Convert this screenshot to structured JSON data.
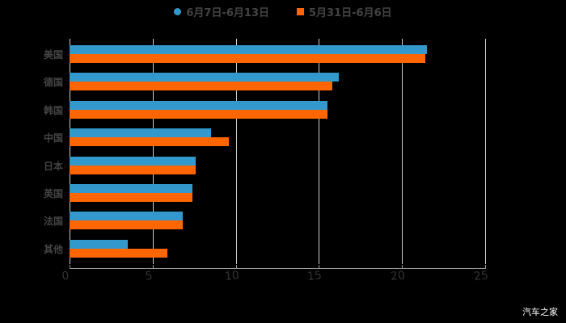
{
  "chart_data": {
    "type": "bar",
    "orientation": "horizontal",
    "title": "",
    "xlabel": "",
    "ylabel": "",
    "xlim": [
      0,
      25
    ],
    "x_ticks": [
      "0",
      "5",
      "10",
      "15",
      "20",
      "25"
    ],
    "grid": true,
    "legend_position": "top",
    "categories": [
      "美国",
      "德国",
      "韩国",
      "中国",
      "日本",
      "英国",
      "法国",
      "其他"
    ],
    "series": [
      {
        "name": "6月7日-6月13日",
        "color": "#3399cc",
        "values": [
          21.5,
          16.2,
          15.5,
          8.5,
          7.6,
          7.4,
          6.8,
          3.5
        ]
      },
      {
        "name": "5月31日-6月6日",
        "color": "#ff6600",
        "values": [
          21.4,
          15.8,
          15.5,
          9.6,
          7.6,
          7.4,
          6.8,
          5.9
        ]
      }
    ]
  },
  "legend": {
    "series1": "6月7日-6月13日",
    "series2": "5月31日-6月6日"
  },
  "watermark": "汽车之家"
}
